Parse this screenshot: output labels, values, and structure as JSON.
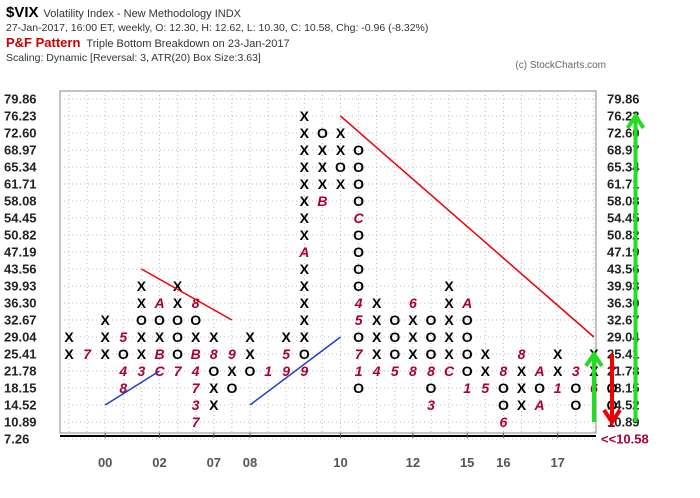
{
  "header": {
    "symbol": "$VIX",
    "description": "Volatility Index - New Methodology  INDX",
    "ohlc": "27-Jan-2017, 16:00 ET, weekly, O: 12.30, H: 12.62, L: 10.30, C: 10.58, Chg: -0.96 (-8.32%)",
    "pattern_label": "P&F Pattern",
    "pattern_value": "Triple Bottom Breakdown on 23-Jan-2017",
    "scaling": "Scaling: Dynamic [Reversal: 3, ATR(20) Box Size:3.63]",
    "copyright": "(c) StockCharts.com"
  },
  "chart_data": {
    "type": "point-and-figure",
    "box_size": 3.63,
    "reversal": 3,
    "grid": true,
    "y_ticks": [
      "79.86",
      "76.23",
      "72.60",
      "68.97",
      "65.34",
      "61.71",
      "58.08",
      "54.45",
      "50.82",
      "47.19",
      "43.56",
      "39.93",
      "36.30",
      "32.67",
      "29.04",
      "25.41",
      "21.78",
      "18.15",
      "14.52",
      "10.89",
      "7.26"
    ],
    "y_tick_values": [
      79.86,
      76.23,
      72.6,
      68.97,
      65.34,
      61.71,
      58.08,
      54.45,
      50.82,
      47.19,
      43.56,
      39.93,
      36.3,
      32.67,
      29.04,
      25.41,
      21.78,
      18.15,
      14.52,
      10.89,
      7.26
    ],
    "x_ticks": [
      {
        "label": "00",
        "col": 2
      },
      {
        "label": "02",
        "col": 5
      },
      {
        "label": "07",
        "col": 8
      },
      {
        "label": "08",
        "col": 10
      },
      {
        "label": "10",
        "col": 15
      },
      {
        "label": "12",
        "col": 19
      },
      {
        "label": "15",
        "col": 22
      },
      {
        "label": "16",
        "col": 24
      },
      {
        "label": "17",
        "col": 27
      }
    ],
    "last_price_label": "<<10.58",
    "columns": [
      {
        "type": "X",
        "boxes": [
          {
            "p": 25.41,
            "m": "X"
          },
          {
            "p": 29.04,
            "m": "X"
          }
        ]
      },
      {
        "type": "O",
        "boxes": [
          {
            "p": 25.41,
            "m": "7"
          }
        ]
      },
      {
        "type": "X",
        "boxes": [
          {
            "p": 25.41,
            "m": "X"
          },
          {
            "p": 29.04,
            "m": "X"
          },
          {
            "p": 32.67,
            "m": "X"
          }
        ]
      },
      {
        "type": "O",
        "boxes": [
          {
            "p": 18.15,
            "m": "8"
          },
          {
            "p": 21.78,
            "m": "4"
          },
          {
            "p": 25.41,
            "m": "O"
          },
          {
            "p": 29.04,
            "m": "5"
          }
        ]
      },
      {
        "type": "X",
        "boxes": [
          {
            "p": 21.78,
            "m": "3"
          },
          {
            "p": 25.41,
            "m": "X"
          },
          {
            "p": 29.04,
            "m": "X"
          },
          {
            "p": 32.67,
            "m": "O"
          },
          {
            "p": 36.3,
            "m": "X"
          },
          {
            "p": 39.93,
            "m": "X"
          }
        ]
      },
      {
        "type": "O",
        "boxes": [
          {
            "p": 21.78,
            "m": "C"
          },
          {
            "p": 25.41,
            "m": "B"
          },
          {
            "p": 29.04,
            "m": "X"
          },
          {
            "p": 32.67,
            "m": "O"
          },
          {
            "p": 36.3,
            "m": "A"
          }
        ]
      },
      {
        "type": "X",
        "boxes": [
          {
            "p": 21.78,
            "m": "7"
          },
          {
            "p": 25.41,
            "m": "O"
          },
          {
            "p": 29.04,
            "m": "O"
          },
          {
            "p": 32.67,
            "m": "O"
          },
          {
            "p": 36.3,
            "m": "X"
          },
          {
            "p": 39.93,
            "m": "X"
          }
        ]
      },
      {
        "type": "O",
        "boxes": [
          {
            "p": 10.89,
            "m": "7"
          },
          {
            "p": 14.52,
            "m": "3"
          },
          {
            "p": 18.15,
            "m": "7"
          },
          {
            "p": 21.78,
            "m": "4"
          },
          {
            "p": 25.41,
            "m": "B"
          },
          {
            "p": 29.04,
            "m": "X"
          },
          {
            "p": 32.67,
            "m": "O"
          },
          {
            "p": 36.3,
            "m": "8"
          }
        ]
      },
      {
        "type": "X",
        "boxes": [
          {
            "p": 14.52,
            "m": "X"
          },
          {
            "p": 18.15,
            "m": "X"
          },
          {
            "p": 21.78,
            "m": "O"
          },
          {
            "p": 25.41,
            "m": "8"
          },
          {
            "p": 29.04,
            "m": "X"
          }
        ]
      },
      {
        "type": "O",
        "boxes": [
          {
            "p": 18.15,
            "m": "O"
          },
          {
            "p": 21.78,
            "m": "X"
          },
          {
            "p": 25.41,
            "m": "9"
          }
        ]
      },
      {
        "type": "X",
        "boxes": [
          {
            "p": 21.78,
            "m": "O"
          },
          {
            "p": 25.41,
            "m": "X"
          },
          {
            "p": 29.04,
            "m": "X"
          }
        ]
      },
      {
        "type": "O",
        "boxes": [
          {
            "p": 21.78,
            "m": "1"
          }
        ]
      },
      {
        "type": "X",
        "boxes": [
          {
            "p": 21.78,
            "m": "9"
          },
          {
            "p": 25.41,
            "m": "5"
          },
          {
            "p": 29.04,
            "m": "X"
          }
        ]
      },
      {
        "type": "X",
        "boxes": [
          {
            "p": 21.78,
            "m": "9"
          },
          {
            "p": 25.41,
            "m": "O"
          },
          {
            "p": 29.04,
            "m": "X"
          },
          {
            "p": 32.67,
            "m": "X"
          },
          {
            "p": 36.3,
            "m": "X"
          },
          {
            "p": 39.93,
            "m": "X"
          },
          {
            "p": 43.56,
            "m": "X"
          },
          {
            "p": 47.19,
            "m": "A"
          },
          {
            "p": 50.82,
            "m": "X"
          },
          {
            "p": 54.45,
            "m": "X"
          },
          {
            "p": 58.08,
            "m": "X"
          },
          {
            "p": 61.71,
            "m": "X"
          },
          {
            "p": 65.34,
            "m": "X"
          },
          {
            "p": 68.97,
            "m": "X"
          },
          {
            "p": 72.6,
            "m": "X"
          },
          {
            "p": 76.23,
            "m": "X"
          }
        ]
      },
      {
        "type": "O",
        "boxes": [
          {
            "p": 58.08,
            "m": "B"
          },
          {
            "p": 61.71,
            "m": "X"
          },
          {
            "p": 65.34,
            "m": "X"
          },
          {
            "p": 68.97,
            "m": "X"
          },
          {
            "p": 72.6,
            "m": "O"
          }
        ]
      },
      {
        "type": "X",
        "boxes": [
          {
            "p": 61.71,
            "m": "X"
          },
          {
            "p": 65.34,
            "m": "O"
          },
          {
            "p": 68.97,
            "m": "X"
          },
          {
            "p": 72.6,
            "m": "X"
          }
        ]
      },
      {
        "type": "O",
        "boxes": [
          {
            "p": 18.15,
            "m": "O"
          },
          {
            "p": 21.78,
            "m": "1"
          },
          {
            "p": 25.41,
            "m": "7"
          },
          {
            "p": 29.04,
            "m": "O"
          },
          {
            "p": 32.67,
            "m": "5"
          },
          {
            "p": 36.3,
            "m": "4"
          },
          {
            "p": 39.93,
            "m": "O"
          },
          {
            "p": 43.56,
            "m": "O"
          },
          {
            "p": 47.19,
            "m": "O"
          },
          {
            "p": 50.82,
            "m": "O"
          },
          {
            "p": 54.45,
            "m": "C"
          },
          {
            "p": 58.08,
            "m": "O"
          },
          {
            "p": 61.71,
            "m": "O"
          },
          {
            "p": 65.34,
            "m": "O"
          },
          {
            "p": 68.97,
            "m": "O"
          }
        ]
      },
      {
        "type": "X",
        "boxes": [
          {
            "p": 21.78,
            "m": "4"
          },
          {
            "p": 25.41,
            "m": "X"
          },
          {
            "p": 29.04,
            "m": "X"
          },
          {
            "p": 32.67,
            "m": "X"
          },
          {
            "p": 36.3,
            "m": "X"
          }
        ]
      },
      {
        "type": "O",
        "boxes": [
          {
            "p": 21.78,
            "m": "5"
          },
          {
            "p": 25.41,
            "m": "O"
          },
          {
            "p": 29.04,
            "m": "O"
          },
          {
            "p": 32.67,
            "m": "O"
          }
        ]
      },
      {
        "type": "X",
        "boxes": [
          {
            "p": 21.78,
            "m": "8"
          },
          {
            "p": 25.41,
            "m": "X"
          },
          {
            "p": 29.04,
            "m": "X"
          },
          {
            "p": 32.67,
            "m": "X"
          },
          {
            "p": 36.3,
            "m": "6"
          }
        ]
      },
      {
        "type": "O",
        "boxes": [
          {
            "p": 14.52,
            "m": "3"
          },
          {
            "p": 18.15,
            "m": "O"
          },
          {
            "p": 21.78,
            "m": "8"
          },
          {
            "p": 25.41,
            "m": "O"
          },
          {
            "p": 29.04,
            "m": "O"
          },
          {
            "p": 32.67,
            "m": "O"
          }
        ]
      },
      {
        "type": "X",
        "boxes": [
          {
            "p": 21.78,
            "m": "C"
          },
          {
            "p": 25.41,
            "m": "X"
          },
          {
            "p": 29.04,
            "m": "X"
          },
          {
            "p": 32.67,
            "m": "X"
          },
          {
            "p": 36.3,
            "m": "X"
          },
          {
            "p": 39.93,
            "m": "X"
          }
        ]
      },
      {
        "type": "O",
        "boxes": [
          {
            "p": 18.15,
            "m": "1"
          },
          {
            "p": 21.78,
            "m": "O"
          },
          {
            "p": 25.41,
            "m": "O"
          },
          {
            "p": 29.04,
            "m": "O"
          },
          {
            "p": 32.67,
            "m": "O"
          },
          {
            "p": 36.3,
            "m": "A"
          }
        ]
      },
      {
        "type": "X",
        "boxes": [
          {
            "p": 18.15,
            "m": "5"
          },
          {
            "p": 21.78,
            "m": "X"
          },
          {
            "p": 25.41,
            "m": "X"
          }
        ]
      },
      {
        "type": "O",
        "boxes": [
          {
            "p": 10.89,
            "m": "6"
          },
          {
            "p": 14.52,
            "m": "O"
          },
          {
            "p": 18.15,
            "m": "O"
          },
          {
            "p": 21.78,
            "m": "8"
          }
        ]
      },
      {
        "type": "X",
        "boxes": [
          {
            "p": 14.52,
            "m": "X"
          },
          {
            "p": 18.15,
            "m": "X"
          },
          {
            "p": 21.78,
            "m": "X"
          },
          {
            "p": 25.41,
            "m": "8"
          }
        ]
      },
      {
        "type": "O",
        "boxes": [
          {
            "p": 14.52,
            "m": "A"
          },
          {
            "p": 18.15,
            "m": "O"
          },
          {
            "p": 21.78,
            "m": "A"
          }
        ]
      },
      {
        "type": "X",
        "boxes": [
          {
            "p": 18.15,
            "m": "1"
          },
          {
            "p": 21.78,
            "m": "X"
          },
          {
            "p": 25.41,
            "m": "X"
          }
        ]
      },
      {
        "type": "O",
        "boxes": [
          {
            "p": 14.52,
            "m": "O"
          },
          {
            "p": 18.15,
            "m": "O"
          },
          {
            "p": 21.78,
            "m": "3"
          }
        ]
      },
      {
        "type": "X",
        "boxes": [
          {
            "p": 18.15,
            "m": "6"
          },
          {
            "p": 21.78,
            "m": "X"
          },
          {
            "p": 25.41,
            "m": "X"
          }
        ]
      },
      {
        "type": "O",
        "boxes": [
          {
            "p": 10.89,
            "m": "1"
          },
          {
            "p": 14.52,
            "m": "O"
          },
          {
            "p": 18.15,
            "m": "O"
          },
          {
            "p": 21.78,
            "m": "7"
          }
        ]
      }
    ],
    "trend_lines": [
      {
        "color": "#ee0000",
        "from": {
          "col": 4,
          "p": 43.56
        },
        "to": {
          "col": 9,
          "p": 32.67
        }
      },
      {
        "color": "#ee0000",
        "from": {
          "col": 15,
          "p": 76.23
        },
        "to": {
          "col": 29,
          "p": 29.04
        }
      },
      {
        "color": "#1f3fcc",
        "from": {
          "col": 2,
          "p": 14.52
        },
        "to": {
          "col": 5,
          "p": 21.78
        }
      },
      {
        "color": "#1f3fcc",
        "from": {
          "col": 10,
          "p": 14.52
        },
        "to": {
          "col": 15,
          "p": 29.04
        }
      }
    ],
    "arrows": [
      {
        "color": "#22dd22",
        "direction": "up",
        "col": 29.0,
        "from": 10.89,
        "to": 25.41
      },
      {
        "color": "#ee0000",
        "direction": "down",
        "col": 30.0,
        "from": 25.41,
        "to": 10.89
      },
      {
        "color": "#22dd22",
        "direction": "up",
        "col": 31.3,
        "from": 10.89,
        "to": 76.23
      }
    ],
    "colors": {
      "X": "#000000",
      "O": "#000000",
      "month": "#aa0033"
    }
  }
}
